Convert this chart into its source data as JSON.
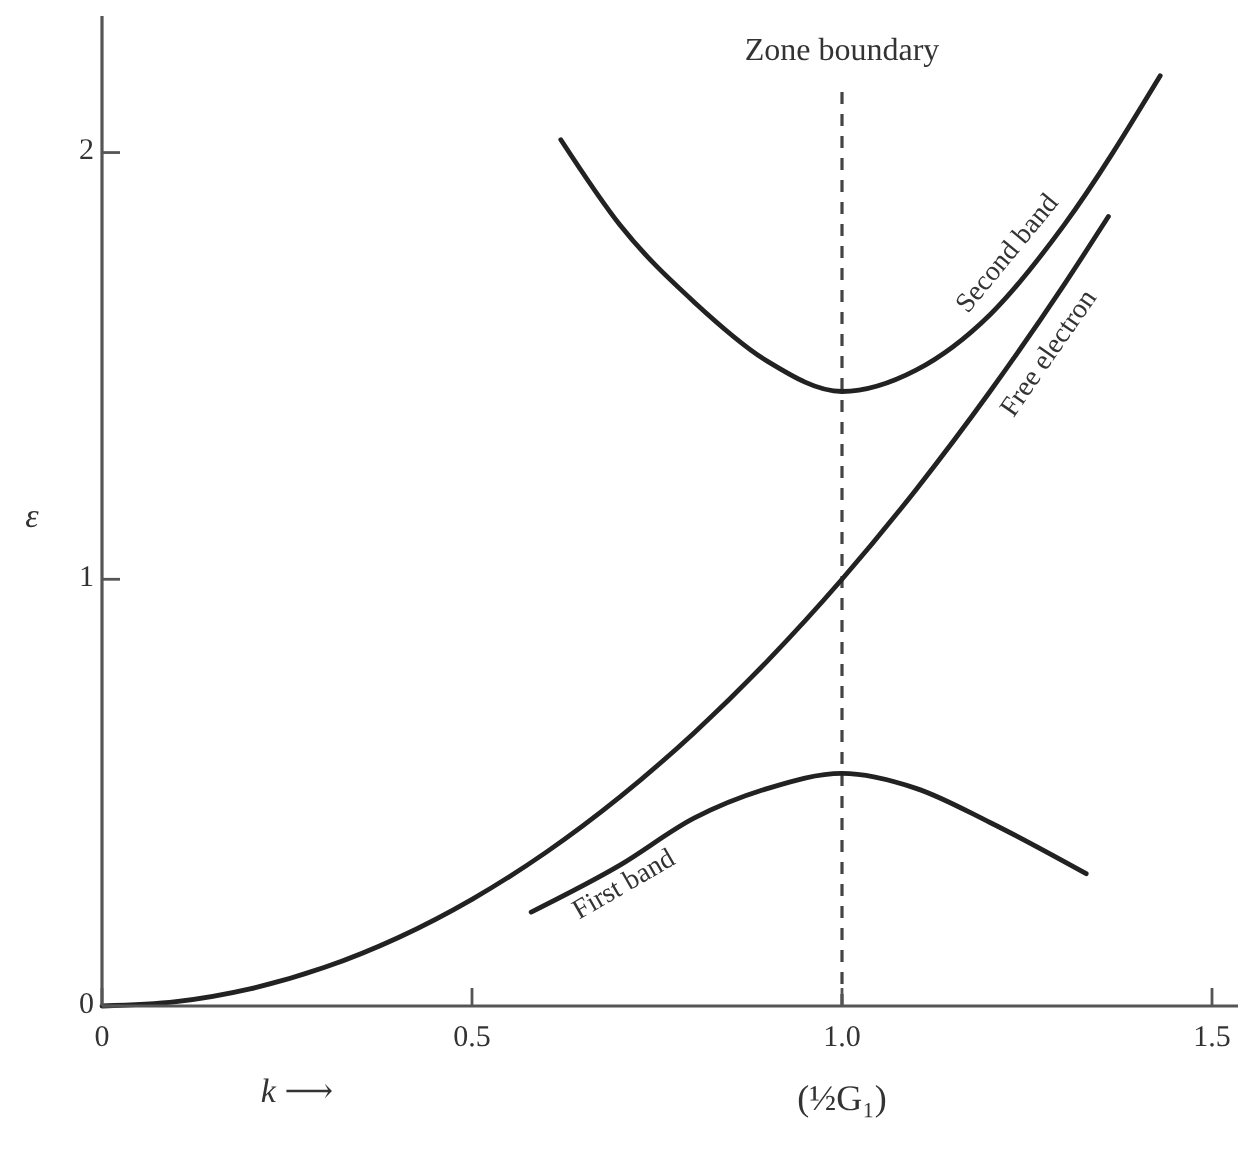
{
  "chart_data": {
    "type": "line",
    "xlabel": "k ⟶",
    "ylabel": "ε",
    "xlim": [
      0,
      1.55
    ],
    "ylim": [
      0,
      2.32
    ],
    "xticks": [
      0,
      0.5,
      {
        "value": 1,
        "label": "1.0"
      },
      1.5
    ],
    "yticks": [
      0,
      1,
      2
    ],
    "grid": false,
    "line_style": "solid",
    "marker": "none",
    "series": [
      {
        "name": "Free electron",
        "color": "#222222",
        "x": [
          0,
          0.1,
          0.2,
          0.3,
          0.4,
          0.5,
          0.6,
          0.7,
          0.8,
          0.9,
          1.0,
          1.1,
          1.2,
          1.3,
          1.36
        ],
        "values": [
          0,
          0.01,
          0.04,
          0.09,
          0.16,
          0.25,
          0.36,
          0.49,
          0.64,
          0.81,
          1.0,
          1.21,
          1.44,
          1.69,
          1.85
        ]
      },
      {
        "name": "First band",
        "color": "#222222",
        "x": [
          0.58,
          0.7,
          0.8,
          0.9,
          1.0,
          1.1,
          1.2,
          1.33
        ],
        "values": [
          0.22,
          0.33,
          0.44,
          0.51,
          0.545,
          0.51,
          0.43,
          0.31
        ]
      },
      {
        "name": "Second band",
        "color": "#222222",
        "x": [
          0.62,
          0.7,
          0.8,
          0.9,
          1.0,
          1.1,
          1.2,
          1.3,
          1.43
        ],
        "values": [
          2.03,
          1.83,
          1.65,
          1.51,
          1.44,
          1.49,
          1.62,
          1.83,
          2.18
        ]
      }
    ],
    "ref_lines": [
      {
        "axis": "x",
        "value": 1,
        "label": "Zone boundary",
        "color": "#444444",
        "line_style": "dashed"
      }
    ],
    "annotations": [
      "(½G₁)"
    ]
  }
}
